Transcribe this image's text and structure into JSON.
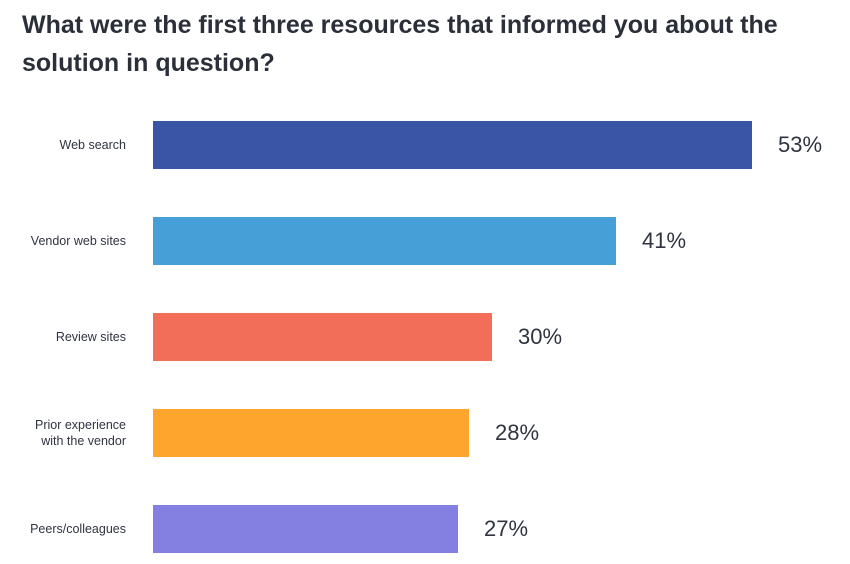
{
  "title": "What were the first three resources that informed you about the solution in question?",
  "chart_data": {
    "type": "bar",
    "orientation": "horizontal",
    "categories": [
      "Web search",
      "Vendor web sites",
      "Review sites",
      "Prior experience\nwith the vendor",
      "Peers/colleagues"
    ],
    "values": [
      53,
      41,
      30,
      28,
      27
    ],
    "value_labels": [
      "53%",
      "41%",
      "30%",
      "28%",
      "27%"
    ],
    "unit": "%",
    "colors": [
      "#3a55a5",
      "#479fd8",
      "#f26e58",
      "#fda52d",
      "#8380e2"
    ],
    "xlim": [
      0,
      53
    ],
    "grid": false,
    "legend": "none"
  }
}
